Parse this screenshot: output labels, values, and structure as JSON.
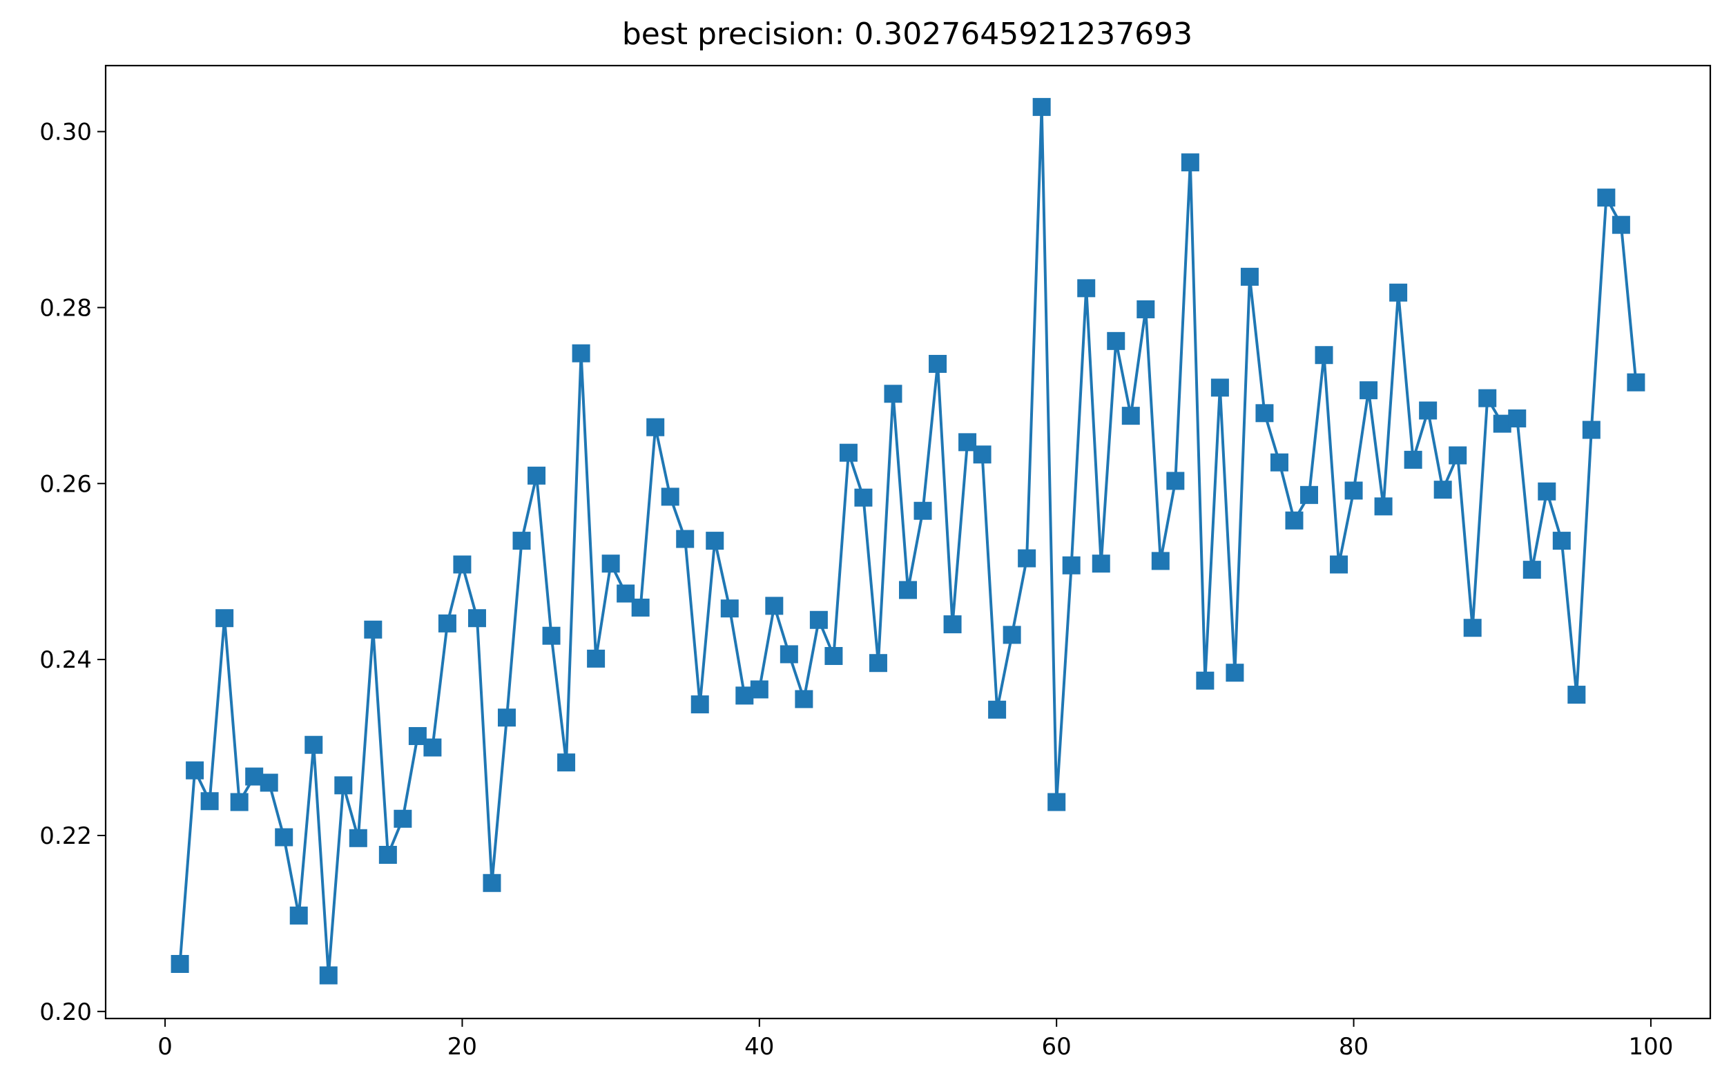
{
  "chart_data": {
    "type": "line",
    "title": "best precision: 0.3027645921237693",
    "xlabel": "",
    "ylabel": "",
    "xlim": [
      -4,
      104
    ],
    "ylim": [
      0.1992,
      0.3075
    ],
    "xticks": [
      0,
      20,
      40,
      60,
      80,
      100
    ],
    "yticks": [
      0.2,
      0.22,
      0.24,
      0.26,
      0.28,
      0.3
    ],
    "ytick_labels": [
      "0.20",
      "0.22",
      "0.24",
      "0.26",
      "0.28",
      "0.30"
    ],
    "grid": false,
    "legend": "none",
    "series": [
      {
        "marker": "square",
        "color": "#1f77b4",
        "x": [
          1,
          2,
          3,
          4,
          5,
          6,
          7,
          8,
          9,
          10,
          11,
          12,
          13,
          14,
          15,
          16,
          17,
          18,
          19,
          20,
          21,
          22,
          23,
          24,
          25,
          26,
          27,
          28,
          29,
          30,
          31,
          32,
          33,
          34,
          35,
          36,
          37,
          38,
          39,
          40,
          41,
          42,
          43,
          44,
          45,
          46,
          47,
          48,
          49,
          50,
          51,
          52,
          53,
          54,
          55,
          56,
          57,
          58,
          59,
          60,
          61,
          62,
          63,
          64,
          65,
          66,
          67,
          68,
          69,
          70,
          71,
          72,
          73,
          74,
          75,
          76,
          77,
          78,
          79,
          80,
          81,
          82,
          83,
          84,
          85,
          86,
          87,
          88,
          89,
          90,
          91,
          92,
          93,
          94,
          95,
          96,
          97,
          98,
          99
        ],
        "values": [
          0.2054,
          0.2274,
          0.2239,
          0.2447,
          0.2238,
          0.2267,
          0.226,
          0.2198,
          0.2109,
          0.2303,
          0.2041,
          0.2257,
          0.2197,
          0.2434,
          0.2178,
          0.2219,
          0.2313,
          0.23,
          0.2441,
          0.2508,
          0.2447,
          0.2146,
          0.2334,
          0.2535,
          0.2609,
          0.2427,
          0.2283,
          0.2748,
          0.2401,
          0.2509,
          0.2475,
          0.2459,
          0.2664,
          0.2585,
          0.2537,
          0.2349,
          0.2535,
          0.2458,
          0.2359,
          0.2366,
          0.2461,
          0.2406,
          0.2355,
          0.2445,
          0.2404,
          0.2635,
          0.2584,
          0.2396,
          0.2702,
          0.2479,
          0.2569,
          0.2736,
          0.244,
          0.2647,
          0.2633,
          0.2343,
          0.2428,
          0.2515,
          0.3028,
          0.2238,
          0.2507,
          0.2822,
          0.2509,
          0.2762,
          0.2677,
          0.2798,
          0.2512,
          0.2603,
          0.2965,
          0.2376,
          0.2709,
          0.2385,
          0.2835,
          0.268,
          0.2624,
          0.2558,
          0.2587,
          0.2746,
          0.2508,
          0.2592,
          0.2706,
          0.2574,
          0.2817,
          0.2627,
          0.2683,
          0.2593,
          0.2632,
          0.2436,
          0.2697,
          0.2668,
          0.2674,
          0.2502,
          0.2591,
          0.2535,
          0.236,
          0.2661,
          0.2925,
          0.2894,
          0.2715
        ]
      }
    ]
  }
}
